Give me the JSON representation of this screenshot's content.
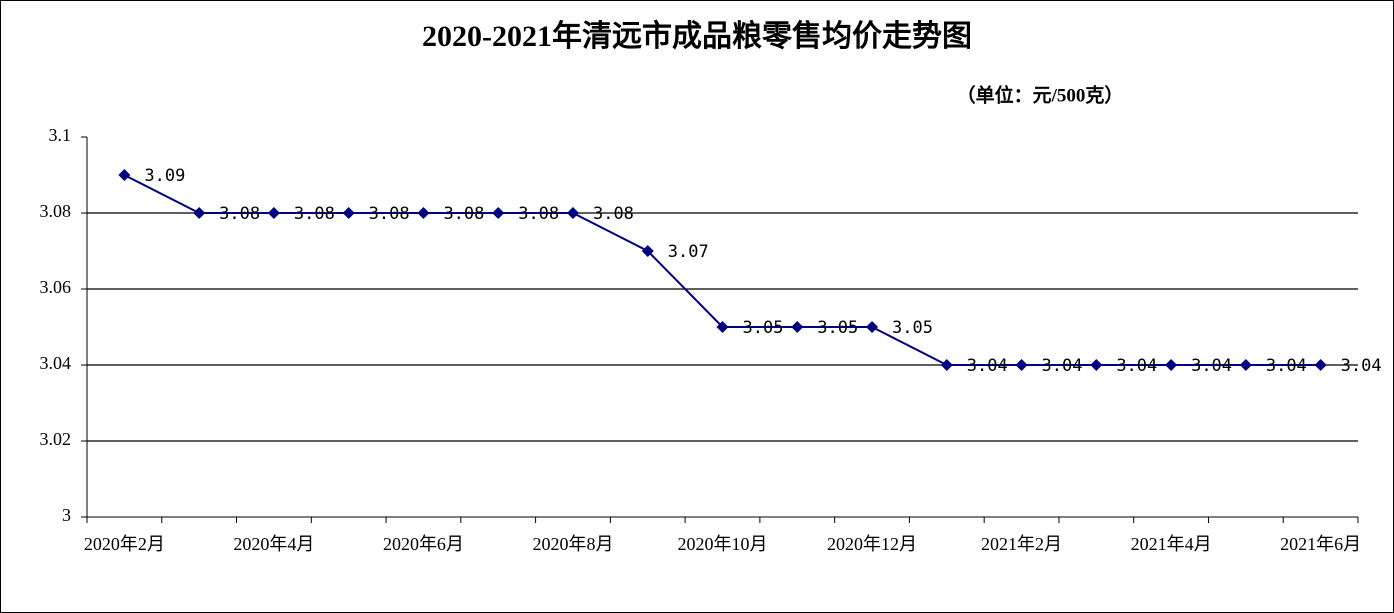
{
  "chart_data": {
    "type": "line",
    "title": "2020-2021年清远市成品粮零售均价走势图",
    "subtitle": "（单位：元/500克）",
    "categories": [
      "2020年2月",
      null,
      "2020年4月",
      null,
      "2020年6月",
      null,
      "2020年8月",
      null,
      "2020年10月",
      null,
      "2020年12月",
      null,
      "2021年2月",
      null,
      "2021年4月",
      null,
      "2021年6月"
    ],
    "series": [
      {
        "name": "均价",
        "color": "#000080",
        "values": [
          3.09,
          3.08,
          3.08,
          3.08,
          3.08,
          3.08,
          3.08,
          3.07,
          3.05,
          3.05,
          3.05,
          3.04,
          3.04,
          3.04,
          3.04,
          3.04,
          3.04
        ]
      }
    ],
    "ylim": [
      3,
      3.1
    ],
    "yticks": [
      3,
      3.02,
      3.04,
      3.06,
      3.08,
      3.1
    ],
    "grid": true,
    "legend": false
  }
}
